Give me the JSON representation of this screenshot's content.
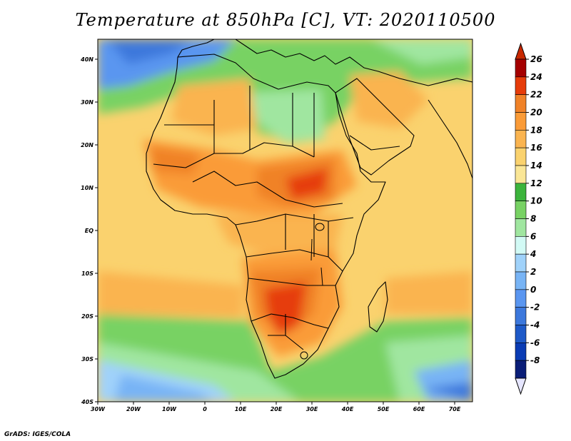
{
  "title": "Temperature at 850hPa [C], VT: 2020110500",
  "credit": "GrADS: IGES/COLA",
  "map": {
    "region": "Africa",
    "variable": "Temperature at 850hPa",
    "units": "C",
    "valid_time": "2020110500",
    "lon_range": [
      -30,
      75
    ],
    "lat_range": [
      -40,
      45
    ],
    "lat_ticks": [
      "40N",
      "30N",
      "20N",
      "10N",
      "EQ",
      "10S",
      "20S",
      "30S",
      "40S"
    ],
    "lon_ticks": [
      "30W",
      "20W",
      "10W",
      "0",
      "10E",
      "20E",
      "30E",
      "40E",
      "50E",
      "60E",
      "70E"
    ]
  },
  "colorbar": {
    "levels": [
      "26",
      "24",
      "22",
      "20",
      "18",
      "16",
      "14",
      "12",
      "10",
      "8",
      "6",
      "4",
      "2",
      "0",
      "-2",
      "-4",
      "-6",
      "-8"
    ],
    "colors": [
      "#a50000",
      "#e63c0a",
      "#f08228",
      "#fa9b37",
      "#fab450",
      "#fad26e",
      "#fae696",
      "#3cb43c",
      "#78d264",
      "#a0e6a0",
      "#d2faf5",
      "#a0d2fa",
      "#78b4f5",
      "#5a96f0",
      "#3c78dc",
      "#1e5ac8",
      "#0a3cb4",
      "#0a1e78"
    ],
    "cap_top_color": "#c82800",
    "cap_bottom_color": "#e6e6ff"
  }
}
